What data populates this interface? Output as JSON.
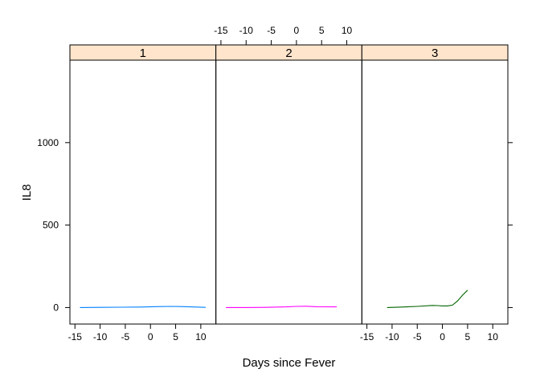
{
  "chart_data": {
    "type": "line",
    "xlabel": "Days since Fever",
    "ylabel": "IL8",
    "xlim": [
      -16,
      13
    ],
    "ylim": [
      -100,
      1500
    ],
    "x_ticks": [
      -15,
      -10,
      -5,
      0,
      5,
      10
    ],
    "y_ticks": [
      0,
      500,
      1000
    ],
    "strip_color": "#ffe5cc",
    "panels": [
      {
        "label": "1",
        "color": "#0080ff",
        "x": [
          -14,
          -10,
          -6,
          -2,
          2,
          4,
          6,
          8,
          11
        ],
        "y": [
          0,
          1,
          2,
          3,
          6,
          7,
          6,
          4,
          1
        ]
      },
      {
        "label": "2",
        "color": "#ff00ff",
        "x": [
          -14,
          -10,
          -6,
          -2,
          0,
          2,
          4,
          8
        ],
        "y": [
          0,
          0,
          1,
          4,
          7,
          8,
          5,
          4
        ]
      },
      {
        "label": "3",
        "color": "#006400",
        "x": [
          -11,
          -8,
          -5,
          -2,
          -1,
          0,
          1,
          2,
          3,
          4,
          5
        ],
        "y": [
          0,
          3,
          7,
          13,
          12,
          10,
          10,
          15,
          40,
          75,
          105
        ]
      }
    ]
  }
}
